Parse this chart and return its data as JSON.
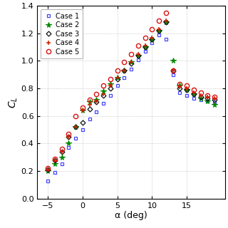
{
  "xlabel": "α (deg)",
  "ylabel": "$C_L$",
  "xlim": [
    -6.5,
    20.5
  ],
  "ylim": [
    0,
    1.4
  ],
  "xticks": [
    -5,
    0,
    5,
    10,
    15
  ],
  "yticks": [
    0,
    0.2,
    0.4,
    0.6,
    0.8,
    1.0,
    1.2,
    1.4
  ],
  "alpha_values": [
    -5,
    -4,
    -3,
    -2,
    -1,
    0,
    1,
    2,
    3,
    4,
    5,
    6,
    7,
    8,
    9,
    10,
    11,
    12,
    13,
    14,
    15,
    16,
    17,
    18,
    19
  ],
  "case1": [
    0.13,
    0.19,
    0.25,
    0.37,
    0.44,
    0.5,
    0.58,
    0.63,
    0.69,
    0.75,
    0.82,
    0.88,
    0.94,
    1.01,
    1.07,
    1.13,
    1.19,
    1.16,
    0.9,
    0.77,
    0.75,
    0.73,
    0.72,
    0.71,
    0.7
  ],
  "case2": [
    0.2,
    0.25,
    0.3,
    0.4,
    0.52,
    0.64,
    0.7,
    0.72,
    0.78,
    0.83,
    0.88,
    0.93,
    0.99,
    1.04,
    1.1,
    1.15,
    1.22,
    1.28,
    1.0,
    0.82,
    0.79,
    0.76,
    0.73,
    0.71,
    0.68
  ],
  "case3": [
    0.21,
    0.28,
    0.34,
    0.45,
    0.52,
    0.55,
    0.65,
    0.7,
    0.75,
    0.8,
    0.87,
    0.93,
    0.98,
    1.04,
    1.1,
    1.16,
    1.22,
    1.28,
    0.93,
    0.8,
    0.79,
    0.76,
    0.74,
    0.73,
    0.72
  ],
  "case4": [
    0.21,
    0.28,
    0.34,
    0.45,
    0.52,
    0.64,
    0.68,
    0.71,
    0.76,
    0.82,
    0.88,
    0.93,
    0.99,
    1.05,
    1.11,
    1.17,
    1.23,
    1.29,
    0.93,
    0.81,
    0.8,
    0.77,
    0.75,
    0.74,
    0.73
  ],
  "case5": [
    0.22,
    0.29,
    0.36,
    0.47,
    0.6,
    0.66,
    0.72,
    0.76,
    0.82,
    0.87,
    0.93,
    0.99,
    1.05,
    1.11,
    1.17,
    1.23,
    1.29,
    1.35,
    0.93,
    0.83,
    0.82,
    0.79,
    0.77,
    0.75,
    0.74
  ],
  "colors": {
    "case1": "#4444ff",
    "case2": "#008800",
    "case3": "#111111",
    "case4": "#cc2200",
    "case5": "#dd1111"
  },
  "bg_color": "#ffffff",
  "grid_color": "#bbbbbb"
}
